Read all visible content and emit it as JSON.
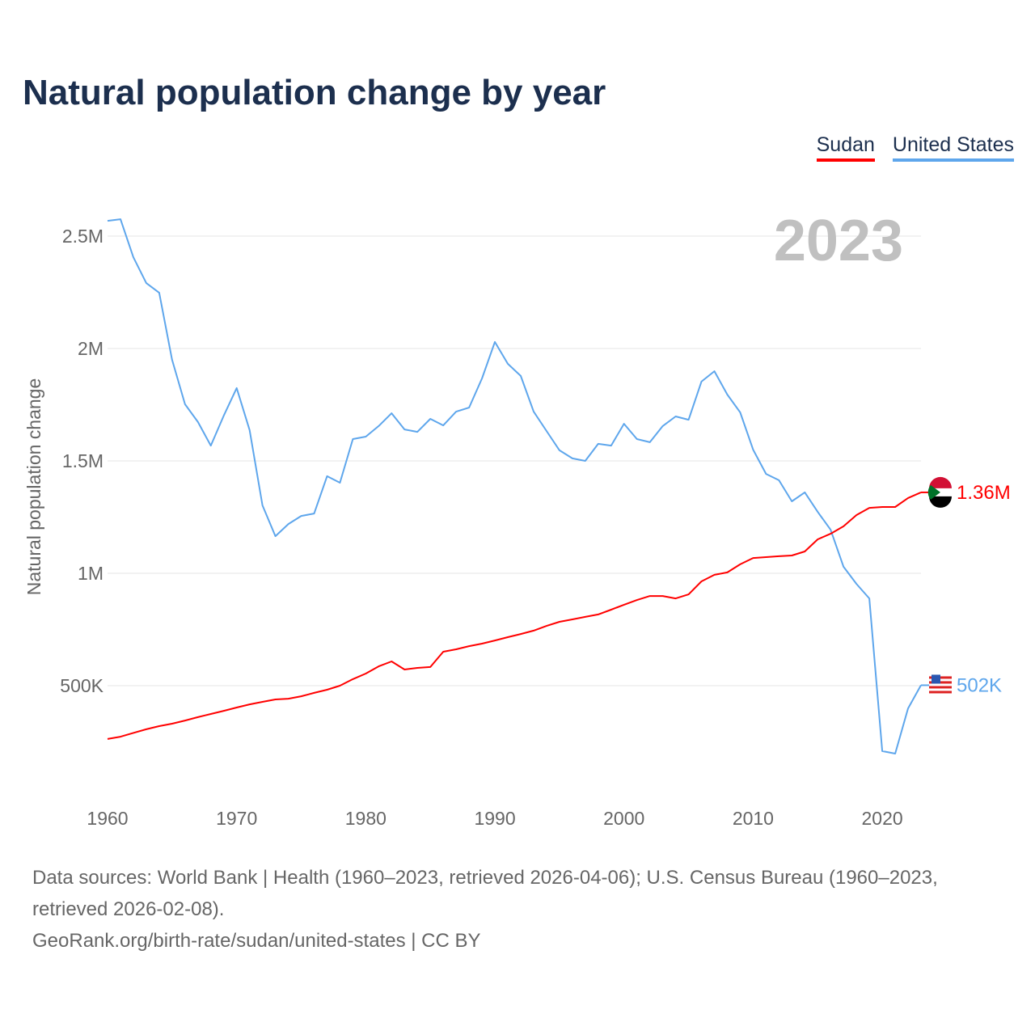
{
  "title": "Natural population change by year",
  "legend": [
    {
      "label": "Sudan",
      "color": "#ff0000"
    },
    {
      "label": "United States",
      "color": "#5ea6ec"
    }
  ],
  "year_label": "2023",
  "sources": {
    "line1": "Data sources: World Bank | Health (1960–2023, retrieved 2026-04-06); U.S. Census Bureau (1960–2023, retrieved 2026-02-08).",
    "line2": "GeoRank.org/birth-rate/sudan/united-states | CC BY"
  },
  "chart_data": {
    "type": "line",
    "title": "Natural population change by year",
    "xlabel": "",
    "ylabel": "Natural population change",
    "xlim": [
      1960,
      2023
    ],
    "ylim": [
      0,
      2.7
    ],
    "yunit": "millions",
    "x_ticks": [
      "1960",
      "1970",
      "1980",
      "1990",
      "2000",
      "2010",
      "2020"
    ],
    "y_ticks": [
      {
        "v": 0.5,
        "label": "500K"
      },
      {
        "v": 1,
        "label": "1M"
      },
      {
        "v": 1.5,
        "label": "1.5M"
      },
      {
        "v": 2,
        "label": "2M"
      },
      {
        "v": 2.5,
        "label": "2.5M"
      }
    ],
    "grid": true,
    "legend_position": "top-right",
    "x": [
      1960,
      1961,
      1962,
      1963,
      1964,
      1965,
      1966,
      1967,
      1968,
      1969,
      1970,
      1971,
      1972,
      1973,
      1974,
      1975,
      1976,
      1977,
      1978,
      1979,
      1980,
      1981,
      1982,
      1983,
      1984,
      1985,
      1986,
      1987,
      1988,
      1989,
      1990,
      1991,
      1992,
      1993,
      1994,
      1995,
      1996,
      1997,
      1998,
      1999,
      2000,
      2001,
      2002,
      2003,
      2004,
      2005,
      2006,
      2007,
      2008,
      2009,
      2010,
      2011,
      2012,
      2013,
      2014,
      2015,
      2016,
      2017,
      2018,
      2019,
      2020,
      2021,
      2022,
      2023
    ],
    "series": [
      {
        "name": "Sudan",
        "end_label": "1.36M",
        "values": [
          0.263,
          0.273,
          0.29,
          0.306,
          0.32,
          0.331,
          0.345,
          0.36,
          0.374,
          0.388,
          0.403,
          0.417,
          0.428,
          0.439,
          0.442,
          0.453,
          0.468,
          0.482,
          0.5,
          0.529,
          0.554,
          0.586,
          0.608,
          0.572,
          0.579,
          0.583,
          0.651,
          0.662,
          0.676,
          0.687,
          0.701,
          0.716,
          0.73,
          0.745,
          0.766,
          0.784,
          0.795,
          0.806,
          0.817,
          0.838,
          0.86,
          0.881,
          0.899,
          0.899,
          0.888,
          0.906,
          0.964,
          0.993,
          1.004,
          1.04,
          1.068,
          1.072,
          1.076,
          1.079,
          1.097,
          1.151,
          1.176,
          1.209,
          1.259,
          1.291,
          1.295,
          1.295,
          1.335,
          1.36
        ]
      },
      {
        "name": "United States",
        "end_label": "502K",
        "values": [
          2.568,
          2.575,
          2.406,
          2.291,
          2.248,
          1.95,
          1.752,
          1.673,
          1.568,
          1.701,
          1.824,
          1.637,
          1.302,
          1.165,
          1.219,
          1.255,
          1.266,
          1.432,
          1.403,
          1.597,
          1.608,
          1.655,
          1.712,
          1.64,
          1.629,
          1.687,
          1.658,
          1.719,
          1.737,
          1.867,
          2.029,
          1.932,
          1.878,
          1.719,
          1.633,
          1.547,
          1.511,
          1.5,
          1.576,
          1.568,
          1.665,
          1.597,
          1.583,
          1.655,
          1.698,
          1.683,
          1.853,
          1.899,
          1.795,
          1.716,
          1.55,
          1.442,
          1.414,
          1.32,
          1.36,
          1.273,
          1.194,
          1.029,
          0.953,
          0.888,
          0.209,
          0.198,
          0.399,
          0.502
        ]
      }
    ]
  }
}
